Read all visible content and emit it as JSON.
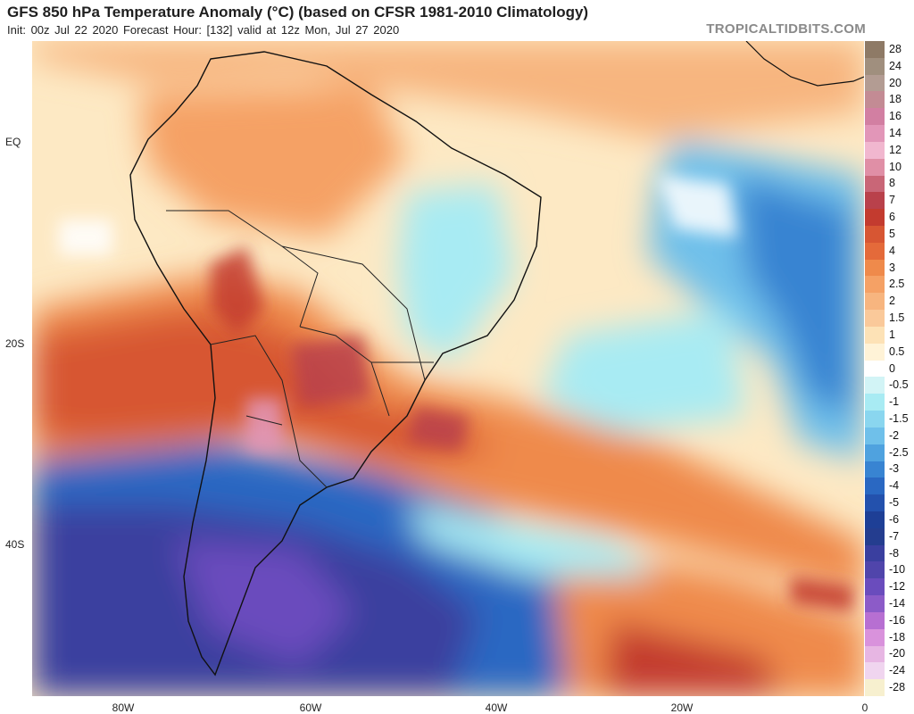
{
  "header": {
    "title": "GFS 850 hPa Temperature Anomaly (°C) (based on CFSR 1981-2010 Climatology)",
    "subtitle": "Init: 00z Jul 22 2020   Forecast Hour: [132]   valid at 12z Mon, Jul 27 2020",
    "brand": "TROPICALTIDBITS.COM"
  },
  "axes": {
    "lat_labels": [
      "EQ",
      "20S",
      "40S"
    ],
    "lon_labels": [
      "80W",
      "60W",
      "40W",
      "20W",
      "0"
    ]
  },
  "colorbar": {
    "labels": [
      "28",
      "24",
      "20",
      "18",
      "16",
      "14",
      "12",
      "10",
      "8",
      "7",
      "6",
      "5",
      "4",
      "3",
      "2.5",
      "2",
      "1.5",
      "1",
      "0.5",
      "0",
      "-0.5",
      "-1",
      "-1.5",
      "-2",
      "-2.5",
      "-3",
      "-4",
      "-5",
      "-6",
      "-7",
      "-8",
      "-10",
      "-12",
      "-14",
      "-16",
      "-18",
      "-20",
      "-24",
      "-28"
    ],
    "colors": [
      "#8e7a66",
      "#a08f7e",
      "#b39c93",
      "#c38b94",
      "#d27fa2",
      "#e296b8",
      "#f1b7cf",
      "#e08fa6",
      "#c96677",
      "#b9414b",
      "#c33b2f",
      "#d75633",
      "#e46a3a",
      "#ef8a4b",
      "#f5a165",
      "#f7b57f",
      "#fac99a",
      "#fde2b6",
      "#fff3d7",
      "#ffffff",
      "#d2f4f6",
      "#a8ebf3",
      "#8ad6ef",
      "#6fc0ea",
      "#4fa2df",
      "#3884d2",
      "#2a68c2",
      "#2351ad",
      "#1e3f96",
      "#243d8f",
      "#3a3f9f",
      "#5045ab",
      "#6a4cbd",
      "#8c5bc8",
      "#b76fd2",
      "#d992dc",
      "#e7b6e3",
      "#f0d5ef",
      "#f7f0cf"
    ]
  },
  "map_data": {
    "region": "South America and South Atlantic",
    "field": "850 hPa temperature anomaly",
    "units": "°C"
  }
}
